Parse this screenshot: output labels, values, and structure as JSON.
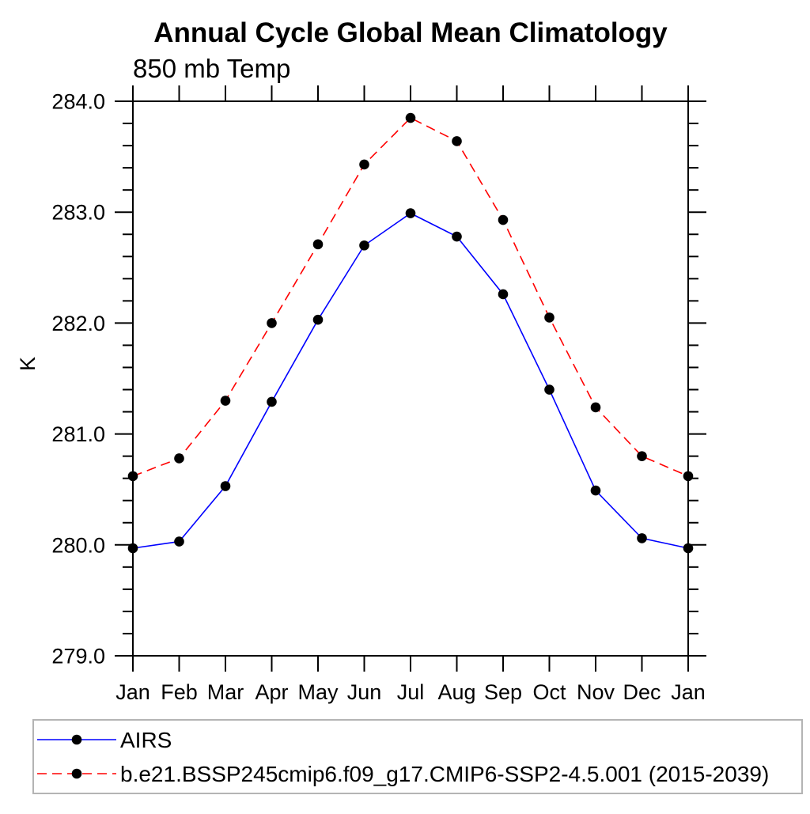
{
  "chart_data": {
    "type": "line",
    "title": "Annual Cycle Global Mean Climatology",
    "subtitle": "850 mb Temp",
    "ylabel": "K",
    "categories": [
      "Jan",
      "Feb",
      "Mar",
      "Apr",
      "May",
      "Jun",
      "Jul",
      "Aug",
      "Sep",
      "Oct",
      "Nov",
      "Dec",
      "Jan"
    ],
    "ylim": [
      279.0,
      284.0
    ],
    "y_major_step": 1.0,
    "y_minor_step": 0.2,
    "y_tick_labels": [
      "284.0",
      "283.0",
      "282.0",
      "281.0",
      "280.0",
      "279.0"
    ],
    "grid": false,
    "legend_position": "bottom-left-box",
    "marker": "filled-circle",
    "marker_color": "#000000",
    "axis_color": "#000000",
    "legend_border_color": "#b4b4b4",
    "series": [
      {
        "name": "AIRS",
        "color": "#0000ff",
        "line_style": "solid",
        "values": [
          279.97,
          280.03,
          280.53,
          281.29,
          282.03,
          282.7,
          282.99,
          282.78,
          282.26,
          281.4,
          280.49,
          280.06,
          279.97
        ]
      },
      {
        "name": "b.e21.BSSP245cmip6.f09_g17.CMIP6-SSP2-4.5.001 (2015-2039)",
        "color": "#ff0000",
        "line_style": "dashed",
        "values": [
          280.62,
          280.78,
          281.3,
          282.0,
          282.71,
          283.43,
          283.85,
          283.64,
          282.93,
          282.05,
          281.24,
          280.8,
          280.62
        ]
      }
    ]
  }
}
